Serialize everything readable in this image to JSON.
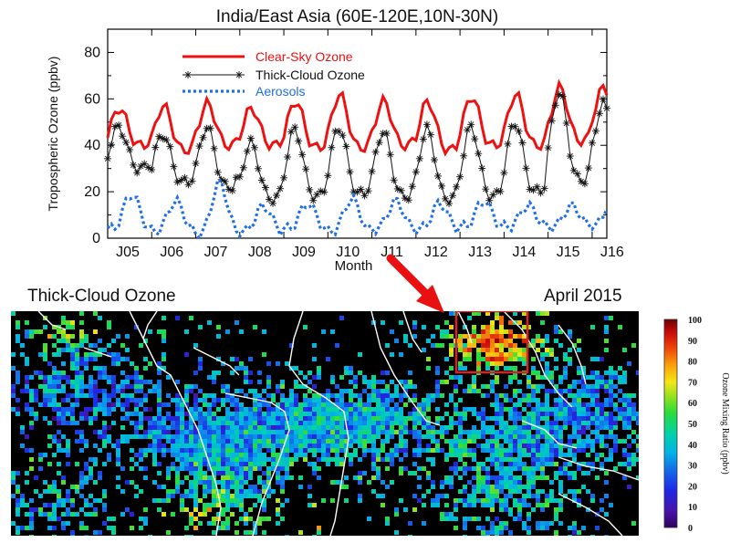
{
  "chart_data": [
    {
      "type": "line",
      "title": "India/East Asia (60E-120E,10N-30N)",
      "xlabel": "Month",
      "ylabel": "Tropospheric Ozone (ppbv)",
      "ylim": [
        0,
        90
      ],
      "yticks": [
        0,
        20,
        40,
        60,
        80
      ],
      "xlim": [
        0,
        136
      ],
      "x_tick_labels": [
        "J05",
        "J06",
        "J07",
        "J08",
        "J09",
        "J10",
        "J11",
        "J12",
        "J13",
        "J14",
        "J15",
        "J16"
      ],
      "legend_position": "top-left",
      "grid": false,
      "series": [
        {
          "name": "Clear-Sky Ozone",
          "color": "#ee1111",
          "style": "solid",
          "peaks": [
            56,
            57,
            58,
            56,
            59,
            62,
            59,
            59,
            61,
            62,
            65,
            65
          ],
          "troughs": [
            40,
            38,
            40,
            40,
            39,
            39,
            40,
            38,
            40,
            40,
            42,
            46
          ]
        },
        {
          "name": "Thick-Cloud Ozone",
          "color": "#111111",
          "style": "asterisk",
          "peaks": [
            48,
            45,
            48,
            41,
            47,
            48,
            46,
            47,
            48,
            50,
            63,
            58
          ],
          "troughs": [
            30,
            24,
            22,
            17,
            18,
            19,
            18,
            17,
            18,
            20,
            25,
            30
          ]
        },
        {
          "name": "Aerosols",
          "color": "#1f6fe5",
          "style": "dotted",
          "peaks": [
            19,
            16,
            24,
            14,
            15,
            17,
            16,
            15,
            16,
            14,
            14,
            24
          ],
          "troughs": [
            4,
            3,
            2,
            3,
            4,
            3,
            4,
            4,
            5,
            5,
            5,
            6
          ]
        }
      ]
    },
    {
      "type": "heatmap",
      "title": "Thick-Cloud Ozone",
      "subtitle": "April 2015",
      "colorbar_label": "Ozone Mixing Ratio (ppbv)",
      "colorbar_ticks": [
        0,
        10,
        20,
        30,
        40,
        50,
        60,
        70,
        80,
        90,
        100
      ],
      "colorbar_range": [
        0,
        100
      ],
      "colors": {
        "highlight_box": "#e02020",
        "arrow": "#e81010",
        "coastline": "#ffffff",
        "background": "#000000"
      }
    }
  ]
}
